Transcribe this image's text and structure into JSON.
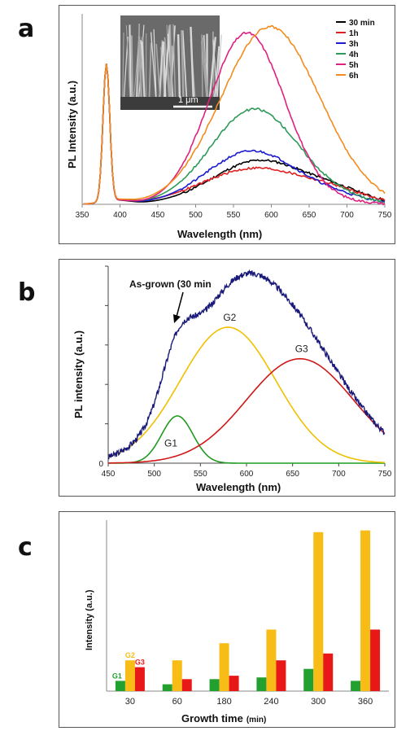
{
  "panels": {
    "a": "a",
    "b": "b",
    "c": "c"
  },
  "chart_data": [
    {
      "type": "line",
      "xlabel": "Wavelength (nm)",
      "ylabel": "PL Intensity (a.u.)",
      "x_ticks": [
        350,
        400,
        450,
        500,
        550,
        600,
        650,
        700,
        750
      ],
      "xlim": [
        350,
        750
      ],
      "ylim": [
        0,
        1.0
      ],
      "inset": {
        "scale_bar": "1 μm"
      },
      "series": [
        {
          "name": "30 min",
          "color": "#000000",
          "uv_peak": 0.72,
          "vis_peak": 0.23,
          "vis_center": 585,
          "vis_width": 62,
          "tail": 0.05
        },
        {
          "name": "1h",
          "color": "#e02020",
          "uv_peak": 0.72,
          "vis_peak": 0.19,
          "vis_center": 580,
          "vis_width": 70,
          "tail": 0.04
        },
        {
          "name": "3h",
          "color": "#1a1ad0",
          "uv_peak": 0.72,
          "vis_peak": 0.28,
          "vis_center": 575,
          "vis_width": 60,
          "tail": 0.03
        },
        {
          "name": "4h",
          "color": "#2e9a5a",
          "uv_peak": 0.72,
          "vis_peak": 0.5,
          "vis_center": 578,
          "vis_width": 58,
          "tail": 0.02
        },
        {
          "name": "5h",
          "color": "#e0207e",
          "uv_peak": 0.72,
          "vis_peak": 0.9,
          "vis_center": 568,
          "vis_width": 50,
          "tail": 0.01
        },
        {
          "name": "6h",
          "color": "#f28c1e",
          "uv_peak": 0.72,
          "vis_peak": 0.93,
          "vis_center": 598,
          "vis_width": 64,
          "tail": 0.02
        }
      ]
    },
    {
      "type": "line",
      "xlabel": "Wavelength (nm)",
      "ylabel": "PL intensity (a.u.)",
      "x_ticks": [
        450,
        500,
        550,
        600,
        650,
        700,
        750
      ],
      "y_ticks": [
        0
      ],
      "xlim": [
        450,
        750
      ],
      "ylim": [
        0,
        1.0
      ],
      "annotation": "As-grown (30 min",
      "components": [
        {
          "name": "G1",
          "color": "#1e9a1e",
          "center": 525,
          "height": 0.24,
          "sigma": 17
        },
        {
          "name": "G2",
          "color": "#f0c000",
          "center": 580,
          "height": 0.69,
          "sigma": 52
        },
        {
          "name": "G3",
          "color": "#d01818",
          "center": 658,
          "height": 0.53,
          "sigma": 58
        }
      ],
      "sum_color": "#1a1a7a"
    },
    {
      "type": "bar",
      "xlabel": "Growth time",
      "xlabel_unit": "(min)",
      "ylabel": "Intensity (a.u.)",
      "categories": [
        "30",
        "60",
        "180",
        "240",
        "300",
        "360"
      ],
      "ylim": [
        0,
        100
      ],
      "series": [
        {
          "name": "G1",
          "color": "#22a030",
          "values": [
            6,
            4,
            7,
            8,
            13,
            6
          ]
        },
        {
          "name": "G2",
          "color": "#f7bc16",
          "values": [
            18,
            18,
            28,
            36,
            93,
            94
          ]
        },
        {
          "name": "G3",
          "color": "#e81818",
          "values": [
            14,
            7,
            9,
            18,
            22,
            36
          ]
        }
      ]
    }
  ]
}
